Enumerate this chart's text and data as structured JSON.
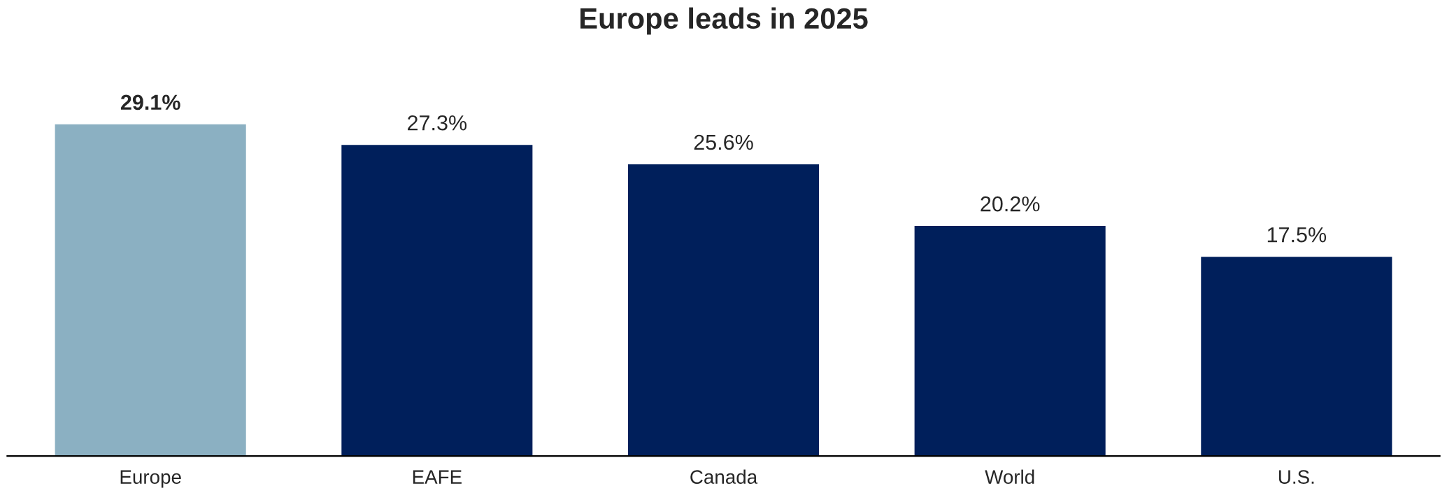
{
  "chart_data": {
    "type": "bar",
    "title": "Europe leads in 2025",
    "categories": [
      "Europe",
      "EAFE",
      "Canada",
      "World",
      "U.S."
    ],
    "values": [
      29.1,
      27.3,
      25.6,
      20.2,
      17.5
    ],
    "colors": [
      "#8bb0c2",
      "#001f5b",
      "#001f5b",
      "#001f5b",
      "#001f5b"
    ],
    "value_labels": [
      "29.1%",
      "27.3%",
      "25.6%",
      "20.2%",
      "17.5%"
    ],
    "grid": false,
    "legend": false
  }
}
